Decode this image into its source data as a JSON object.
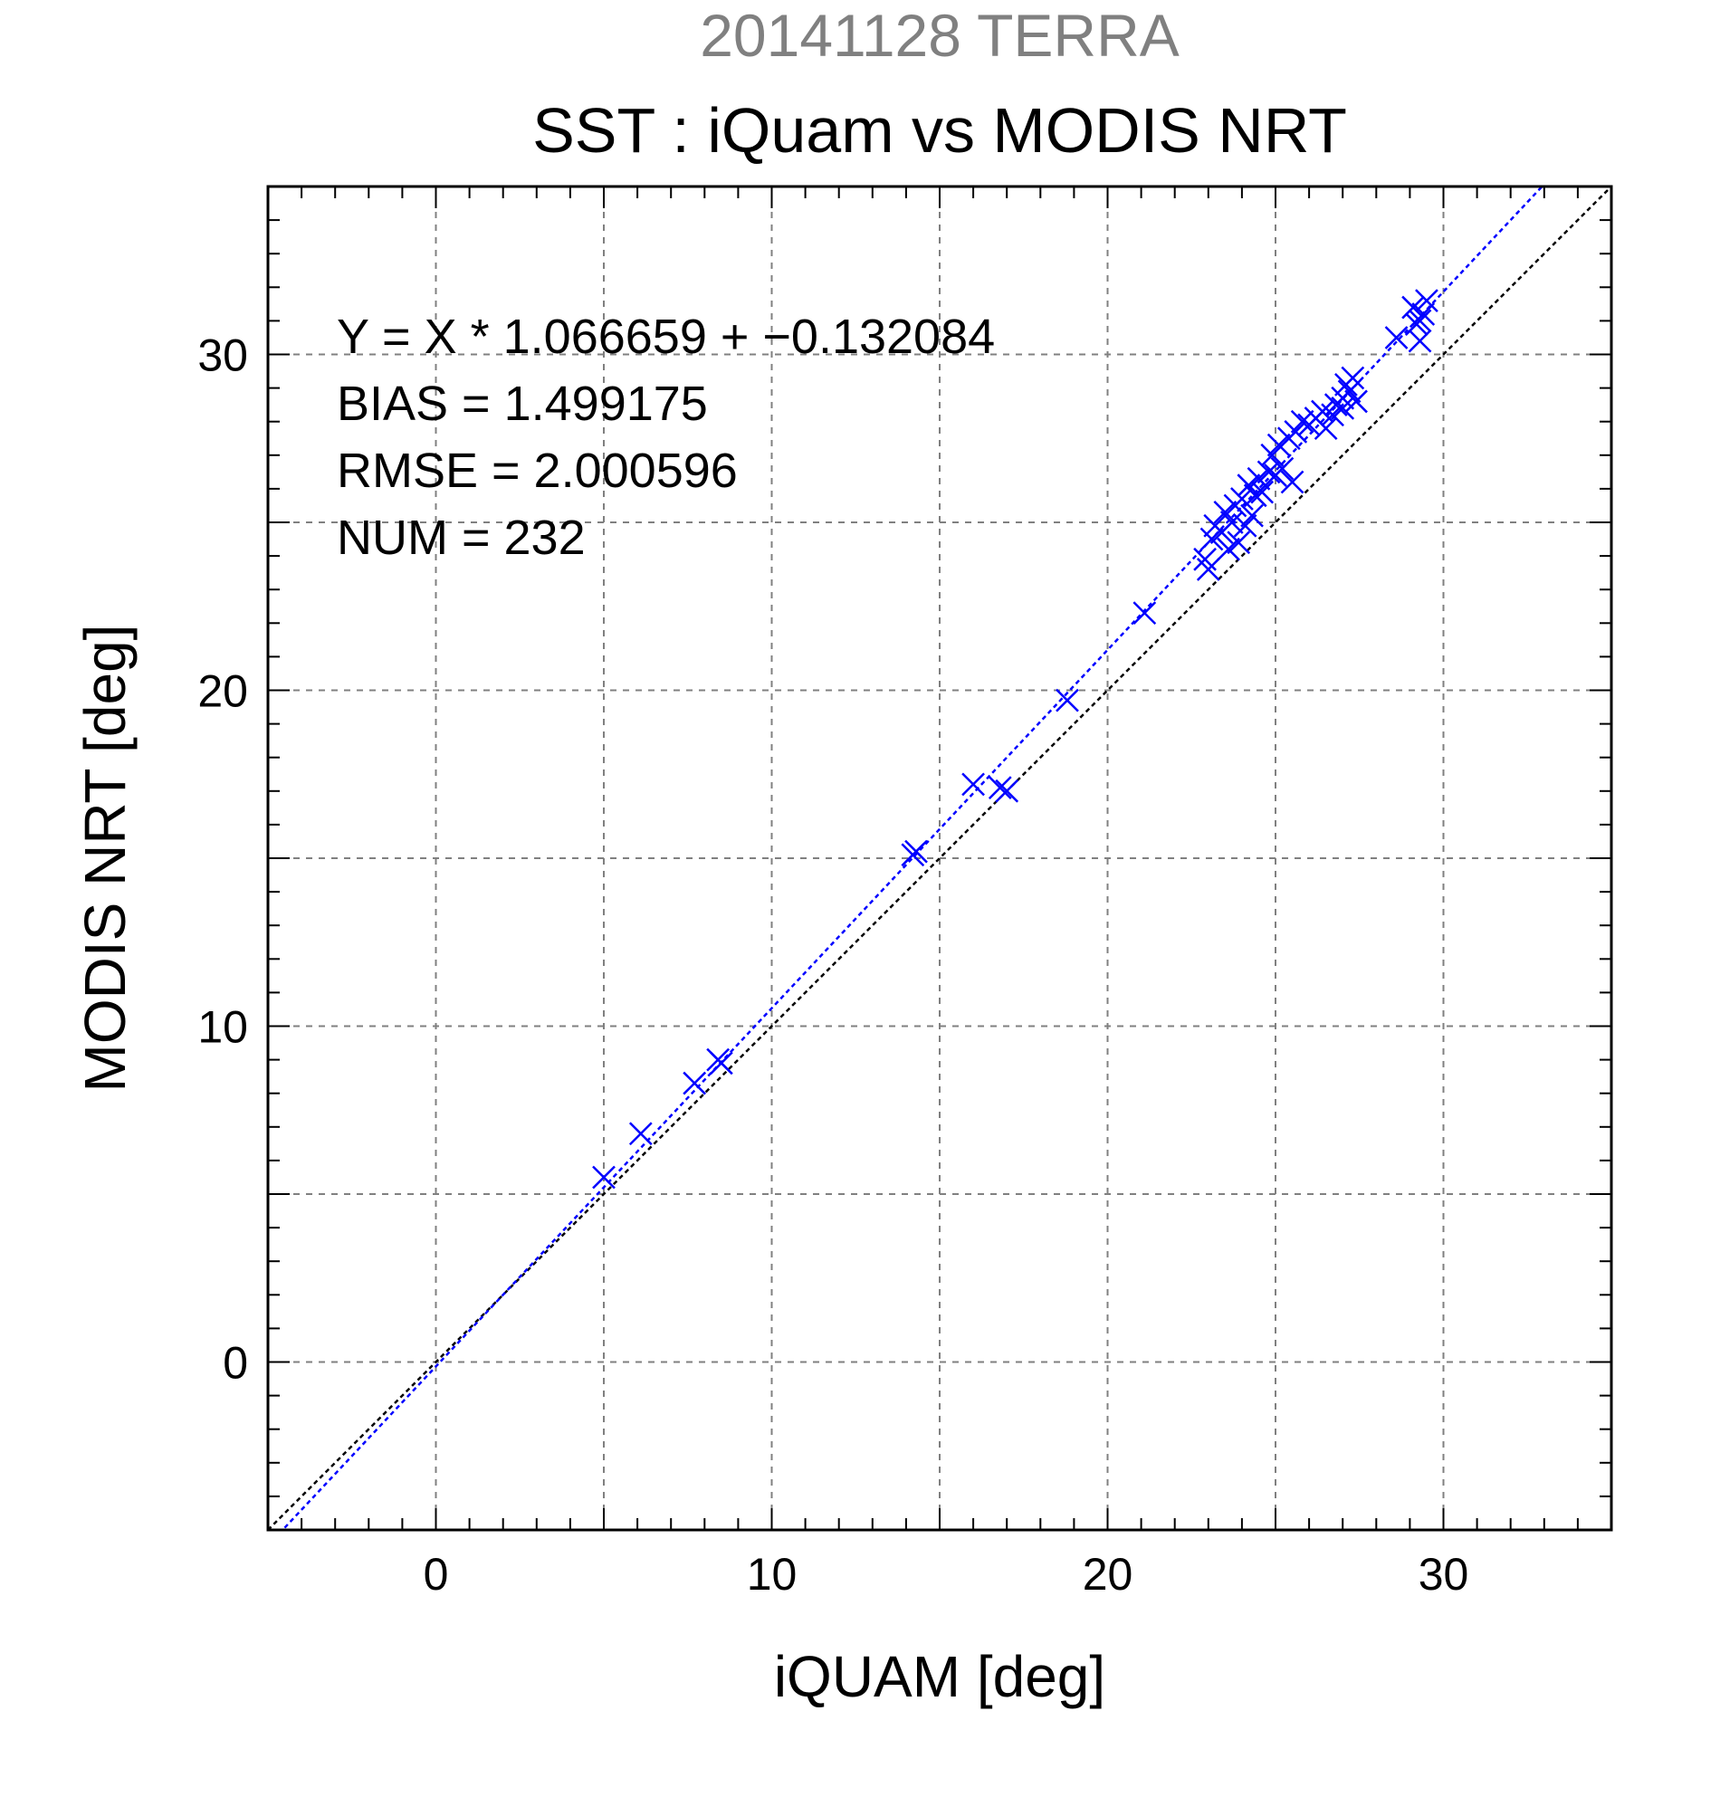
{
  "chart_data": {
    "type": "scatter",
    "supertitle": "20141128 TERRA",
    "title": "SST : iQuam vs MODIS NRT",
    "xlabel": "iQUAM [deg]",
    "ylabel": "MODIS NRT [deg]",
    "xlim": [
      -5,
      35
    ],
    "ylim": [
      -5,
      35
    ],
    "xticks": [
      0,
      10,
      20,
      30
    ],
    "yticks": [
      0,
      10,
      20,
      30
    ],
    "xtick_labels": [
      "0",
      "10",
      "20",
      "30"
    ],
    "ytick_labels": [
      "0",
      "10",
      "20",
      "30"
    ],
    "grid": true,
    "marker": "x",
    "marker_color": "#0000ff",
    "stats": [
      "Y = X * 1.066659 + −0.132084",
      "BIAS = 1.499175",
      "RMSE = 2.000596",
      "NUM = 232"
    ],
    "fit_line": {
      "slope": 1.066659,
      "intercept": -0.132084,
      "color": "#0000ff"
    },
    "identity_line": {
      "slope": 1,
      "intercept": 0,
      "color": "#000000"
    },
    "points": [
      [
        5.0,
        5.5
      ],
      [
        6.1,
        6.8
      ],
      [
        7.7,
        8.3
      ],
      [
        8.4,
        9.0
      ],
      [
        8.5,
        8.9
      ],
      [
        14.2,
        15.1
      ],
      [
        14.3,
        15.2
      ],
      [
        16.0,
        17.2
      ],
      [
        16.8,
        17.1
      ],
      [
        17.0,
        17.0
      ],
      [
        18.8,
        19.7
      ],
      [
        21.1,
        22.3
      ],
      [
        22.9,
        23.9
      ],
      [
        23.1,
        24.5
      ],
      [
        23.0,
        23.6
      ],
      [
        23.2,
        24.9
      ],
      [
        23.4,
        24.7
      ],
      [
        23.5,
        25.3
      ],
      [
        23.6,
        24.2
      ],
      [
        23.7,
        25.0
      ],
      [
        23.8,
        25.5
      ],
      [
        23.9,
        24.4
      ],
      [
        24.0,
        25.7
      ],
      [
        24.1,
        24.9
      ],
      [
        24.2,
        26.1
      ],
      [
        24.3,
        25.2
      ],
      [
        24.4,
        25.8
      ],
      [
        24.5,
        26.3
      ],
      [
        24.6,
        25.9
      ],
      [
        24.8,
        26.5
      ],
      [
        24.9,
        27.0
      ],
      [
        25.0,
        26.4
      ],
      [
        25.1,
        27.3
      ],
      [
        25.2,
        26.6
      ],
      [
        25.4,
        27.5
      ],
      [
        25.5,
        26.2
      ],
      [
        25.6,
        27.7
      ],
      [
        25.8,
        28.0
      ],
      [
        26.0,
        27.9
      ],
      [
        26.2,
        28.1
      ],
      [
        26.4,
        28.3
      ],
      [
        26.5,
        27.8
      ],
      [
        26.7,
        28.2
      ],
      [
        26.8,
        28.5
      ],
      [
        27.0,
        28.7
      ],
      [
        27.1,
        29.1
      ],
      [
        27.2,
        28.9
      ],
      [
        27.3,
        29.3
      ],
      [
        27.4,
        28.6
      ],
      [
        27.0,
        28.4
      ],
      [
        28.6,
        30.5
      ],
      [
        29.1,
        31.4
      ],
      [
        29.2,
        30.9
      ],
      [
        29.3,
        30.4
      ],
      [
        29.4,
        31.2
      ],
      [
        29.5,
        31.6
      ],
      [
        29.3,
        31.0
      ]
    ]
  }
}
